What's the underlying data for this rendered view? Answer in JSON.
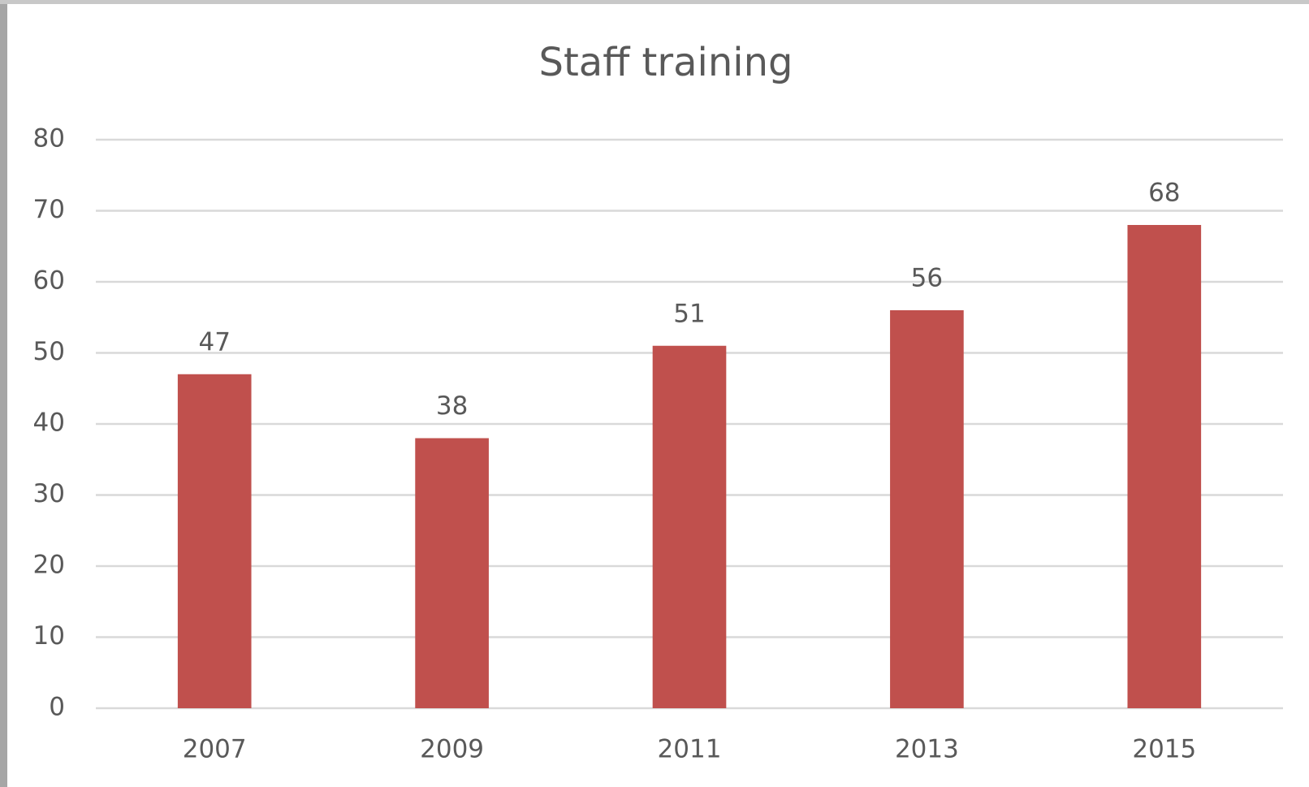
{
  "chart_data": {
    "type": "bar",
    "title": "Staff training",
    "categories": [
      "2007",
      "2009",
      "2011",
      "2013",
      "2015"
    ],
    "values": [
      47,
      38,
      51,
      56,
      68
    ],
    "color": "#c0504d",
    "ylim": [
      0,
      80
    ],
    "yticks": [
      0,
      10,
      20,
      30,
      40,
      50,
      60,
      70,
      80
    ],
    "grid": true,
    "data_labels": true
  }
}
